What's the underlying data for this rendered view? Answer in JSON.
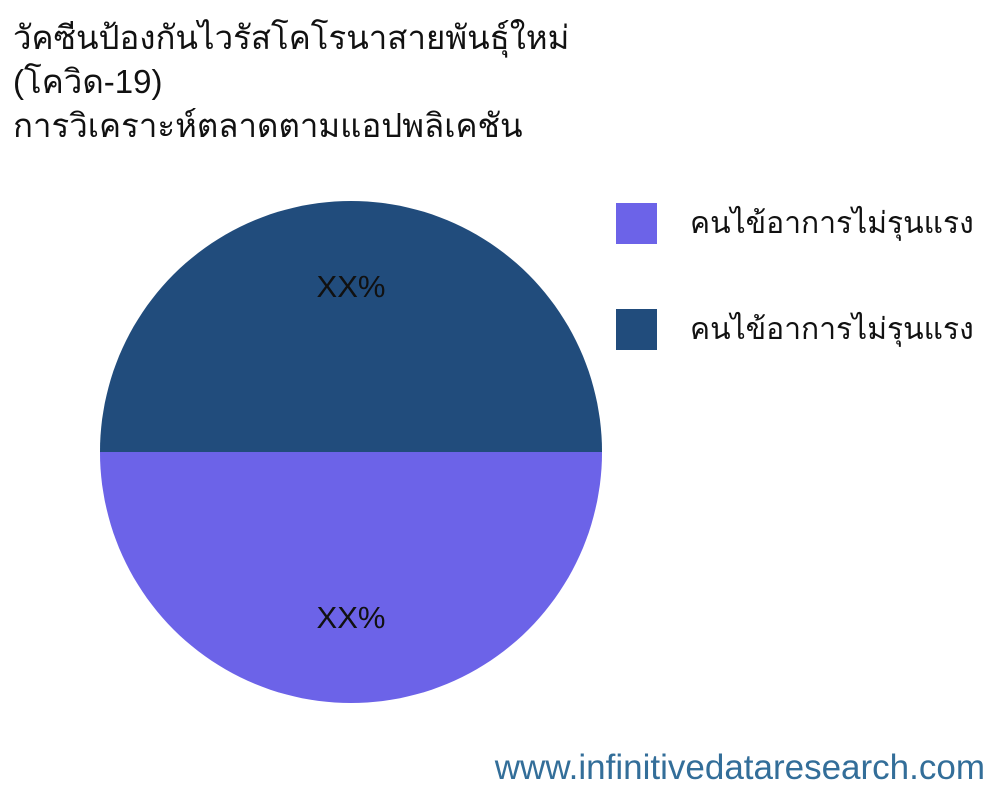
{
  "page": {
    "background": "#ffffff"
  },
  "title": {
    "lines": [
      "วัคซีนป้องกันไวรัสโคโรนาสายพันธุ์ใหม่",
      "(โควิด-19)",
      "การวิเคราะห์ตลาดตามแอปพลิเคชัน"
    ],
    "color": "#111111"
  },
  "chart_data": {
    "type": "pie",
    "title": "วัคซีนป้องกันไวรัสโคโรนาสายพันธุ์ใหม่ (โควิด-19) การวิเคราะห์ตลาดตามแอปพลิเคชัน",
    "slices": [
      {
        "label": "คนไข้อาการไม่รุนแรง",
        "value": 50,
        "display_label": "XX%",
        "color": "#6C63E8"
      },
      {
        "label": "คนไข้อาการไม่รุนแรง",
        "value": 50,
        "display_label": "XX%",
        "color": "#214C7C"
      }
    ],
    "start_angle_deg": 180,
    "direction": "counterclockwise",
    "slice_label_color": "#111111",
    "legend_position": "right",
    "legend_entries": [
      "คนไข้อาการไม่รุนแรง",
      "คนไข้อาการไม่รุนแรง"
    ]
  },
  "legend": {
    "items": [
      {
        "label": "คนไข้อาการไม่รุนแรง",
        "color": "#6C63E8"
      },
      {
        "label": "คนไข้อาการไม่รุนแรง",
        "color": "#214C7C"
      }
    ]
  },
  "footer": {
    "url": "www.infinitivedataresearch.com",
    "color": "#336E99"
  }
}
